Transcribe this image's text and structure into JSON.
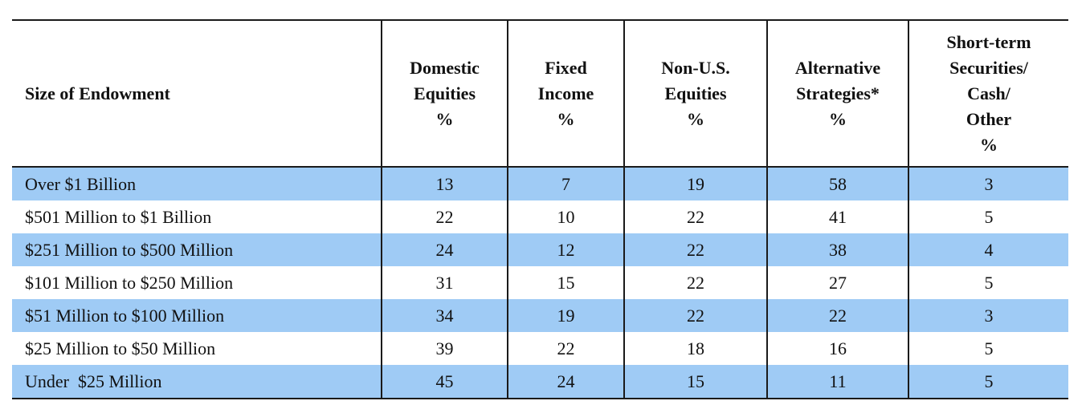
{
  "table": {
    "header": {
      "size": "Size of Endowment",
      "columns": [
        [
          "Domestic",
          "Equities",
          "%"
        ],
        [
          "Fixed",
          "Income",
          "%"
        ],
        [
          "Non-U.S.",
          "Equities",
          "%"
        ],
        [
          "Alternative",
          "Strategies*",
          "%"
        ],
        [
          "Short-term",
          "Securities/",
          "Cash/",
          "Other",
          "%"
        ]
      ]
    },
    "rows": [
      {
        "label": "Over $1 Billion",
        "values": [
          "13",
          "7",
          "19",
          "58",
          "3"
        ],
        "shaded": true
      },
      {
        "label": "$501 Million to $1 Billion",
        "values": [
          "22",
          "10",
          "22",
          "41",
          "5"
        ],
        "shaded": false
      },
      {
        "label": "$251 Million to $500 Million",
        "values": [
          "24",
          "12",
          "22",
          "38",
          "4"
        ],
        "shaded": true
      },
      {
        "label": "$101 Million to $250 Million",
        "values": [
          "31",
          "15",
          "22",
          "27",
          "5"
        ],
        "shaded": false
      },
      {
        "label": "$51 Million to $100 Million",
        "values": [
          "34",
          "19",
          "22",
          "22",
          "3"
        ],
        "shaded": true
      },
      {
        "label": "$25 Million to $50 Million",
        "values": [
          "39",
          "22",
          "18",
          "16",
          "5"
        ],
        "shaded": false
      },
      {
        "label": "Under  $25 Million",
        "values": [
          "45",
          "24",
          "15",
          "11",
          "5"
        ],
        "shaded": true
      }
    ],
    "colors": {
      "shade": "#9fcbf5",
      "rule": "#1a1a1a"
    }
  }
}
